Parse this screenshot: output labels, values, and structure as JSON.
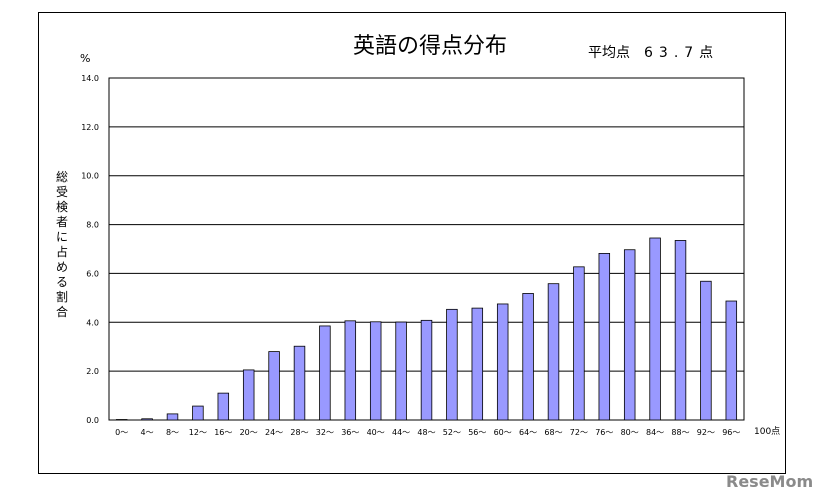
{
  "chart_data": {
    "type": "bar",
    "title": "英語の得点分布",
    "average_label": "平均点",
    "average_value": "63.7点",
    "y_unit": "%",
    "ylabel": "総受検者に占める割合",
    "x_unit": "100点",
    "ylim": [
      0,
      14
    ],
    "yticks": [
      "0.0",
      "2.0",
      "4.0",
      "6.0",
      "8.0",
      "10.0",
      "12.0",
      "14.0"
    ],
    "grid": true,
    "categories": [
      "0～",
      "4～",
      "8～",
      "12～",
      "16～",
      "20～",
      "24～",
      "28～",
      "32～",
      "36～",
      "40～",
      "44～",
      "48～",
      "52～",
      "56～",
      "60～",
      "64～",
      "68～",
      "72～",
      "76～",
      "80～",
      "84～",
      "88～",
      "92～",
      "96～"
    ],
    "values": [
      0.02,
      0.05,
      0.25,
      0.57,
      1.1,
      2.05,
      2.8,
      3.02,
      3.85,
      4.06,
      4.02,
      4.01,
      4.08,
      4.53,
      4.58,
      4.75,
      5.18,
      5.58,
      6.27,
      6.82,
      6.97,
      7.45,
      7.35,
      5.68,
      4.87
    ],
    "bar_color": "#9999ff"
  },
  "watermark": "ReseMom"
}
